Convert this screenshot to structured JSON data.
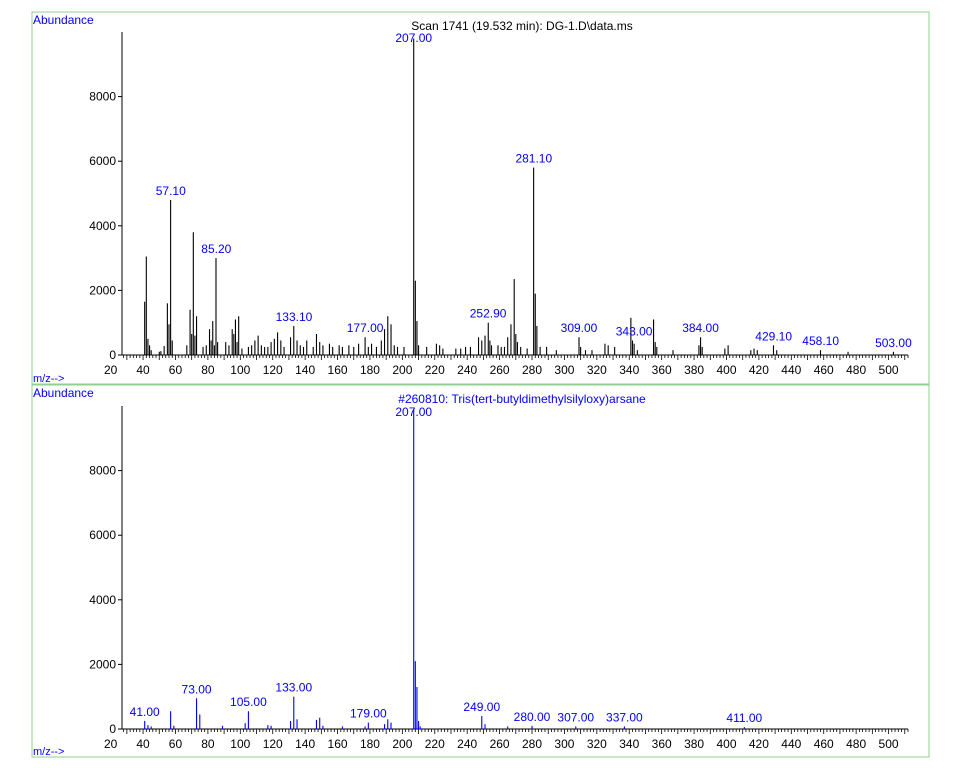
{
  "colors": {
    "panel_border": "#8fd08f",
    "sample_peaks": "#000000",
    "library_peaks": "#0000ff",
    "peak_labels": "#0000ff",
    "axis": "#000000"
  },
  "panels": [
    {
      "id": "sample",
      "ylabel": "Abundance",
      "xlabel": "m/z-->",
      "title": "Scan 1741 (19.532 min): DG-1.D\\data.ms"
    },
    {
      "id": "library",
      "ylabel": "Abundance",
      "xlabel": "m/z-->",
      "title": "#260810: Tris(tert-butyldimethylsilyloxy)arsane"
    }
  ],
  "chart_data": [
    {
      "type": "bar",
      "title": "Scan 1741 (19.532 min): DG-1.D\\data.ms",
      "xlabel": "m/z-->",
      "ylabel": "Abundance",
      "xlim": [
        27,
        512
      ],
      "ylim": [
        0,
        10000
      ],
      "x_ticks": [
        20,
        40,
        60,
        80,
        100,
        120,
        140,
        160,
        180,
        200,
        220,
        240,
        260,
        280,
        300,
        320,
        340,
        360,
        380,
        400,
        420,
        440,
        460,
        480,
        500
      ],
      "y_ticks": [
        0,
        2000,
        4000,
        6000,
        8000
      ],
      "peaks": [
        [
          41,
          1650
        ],
        [
          42,
          3050
        ],
        [
          43,
          500
        ],
        [
          44,
          300
        ],
        [
          45,
          150
        ],
        [
          50,
          100
        ],
        [
          51,
          120
        ],
        [
          53,
          280
        ],
        [
          55,
          1600
        ],
        [
          56,
          950
        ],
        [
          57,
          4800
        ],
        [
          58,
          450
        ],
        [
          67,
          300
        ],
        [
          69,
          1400
        ],
        [
          70,
          650
        ],
        [
          71,
          3800
        ],
        [
          72,
          600
        ],
        [
          73,
          1200
        ],
        [
          77,
          250
        ],
        [
          79,
          300
        ],
        [
          81,
          800
        ],
        [
          82,
          450
        ],
        [
          83,
          1050
        ],
        [
          84,
          300
        ],
        [
          85,
          3000
        ],
        [
          86,
          400
        ],
        [
          91,
          400
        ],
        [
          93,
          300
        ],
        [
          95,
          800
        ],
        [
          96,
          650
        ],
        [
          97,
          1100
        ],
        [
          98,
          400
        ],
        [
          99,
          1200
        ],
        [
          101,
          200
        ],
        [
          105,
          250
        ],
        [
          107,
          300
        ],
        [
          109,
          450
        ],
        [
          111,
          600
        ],
        [
          113,
          300
        ],
        [
          115,
          250
        ],
        [
          117,
          250
        ],
        [
          119,
          400
        ],
        [
          121,
          500
        ],
        [
          123,
          700
        ],
        [
          125,
          450
        ],
        [
          127,
          250
        ],
        [
          131,
          550
        ],
        [
          133,
          900
        ],
        [
          135,
          450
        ],
        [
          137,
          300
        ],
        [
          139,
          250
        ],
        [
          141,
          450
        ],
        [
          145,
          250
        ],
        [
          147,
          650
        ],
        [
          149,
          400
        ],
        [
          151,
          300
        ],
        [
          155,
          350
        ],
        [
          157,
          250
        ],
        [
          161,
          300
        ],
        [
          163,
          250
        ],
        [
          167,
          300
        ],
        [
          170,
          250
        ],
        [
          173,
          350
        ],
        [
          177,
          550
        ],
        [
          179,
          250
        ],
        [
          181,
          350
        ],
        [
          184,
          250
        ],
        [
          187,
          450
        ],
        [
          189,
          800
        ],
        [
          191,
          1200
        ],
        [
          193,
          950
        ],
        [
          195,
          300
        ],
        [
          197,
          250
        ],
        [
          201,
          250
        ],
        [
          207,
          9800
        ],
        [
          208,
          2300
        ],
        [
          209,
          1050
        ],
        [
          210,
          300
        ],
        [
          215,
          250
        ],
        [
          221,
          350
        ],
        [
          223,
          300
        ],
        [
          225,
          200
        ],
        [
          233,
          200
        ],
        [
          236,
          200
        ],
        [
          239,
          250
        ],
        [
          242,
          250
        ],
        [
          247,
          550
        ],
        [
          249,
          450
        ],
        [
          251,
          600
        ],
        [
          253,
          1000
        ],
        [
          254,
          450
        ],
        [
          255,
          300
        ],
        [
          259,
          300
        ],
        [
          261,
          250
        ],
        [
          263,
          250
        ],
        [
          265,
          550
        ],
        [
          267,
          950
        ],
        [
          269,
          2350
        ],
        [
          270,
          650
        ],
        [
          271,
          400
        ],
        [
          273,
          250
        ],
        [
          277,
          200
        ],
        [
          281,
          5800
        ],
        [
          282,
          1900
        ],
        [
          283,
          900
        ],
        [
          285,
          250
        ],
        [
          289,
          250
        ],
        [
          295,
          150
        ],
        [
          309,
          550
        ],
        [
          310,
          250
        ],
        [
          313,
          150
        ],
        [
          317,
          150
        ],
        [
          325,
          350
        ],
        [
          327,
          300
        ],
        [
          331,
          250
        ],
        [
          341,
          1150
        ],
        [
          342,
          450
        ],
        [
          343,
          350
        ],
        [
          345,
          150
        ],
        [
          355,
          1100
        ],
        [
          356,
          400
        ],
        [
          357,
          250
        ],
        [
          367,
          150
        ],
        [
          383,
          300
        ],
        [
          384,
          550
        ],
        [
          385,
          250
        ],
        [
          399,
          200
        ],
        [
          401,
          300
        ],
        [
          415,
          150
        ],
        [
          417,
          200
        ],
        [
          419,
          150
        ],
        [
          429,
          300
        ],
        [
          431,
          150
        ],
        [
          458,
          150
        ],
        [
          475,
          100
        ],
        [
          503,
          100
        ]
      ],
      "labels": [
        {
          "mz": 57.1,
          "text": "57.10"
        },
        {
          "mz": 85.2,
          "text": "85.20"
        },
        {
          "mz": 133.1,
          "text": "133.10"
        },
        {
          "mz": 177.0,
          "text": "177.00"
        },
        {
          "mz": 207.0,
          "text": "207.00"
        },
        {
          "mz": 252.9,
          "text": "252.90"
        },
        {
          "mz": 281.1,
          "text": "281.10"
        },
        {
          "mz": 309.0,
          "text": "309.00"
        },
        {
          "mz": 343.0,
          "text": "343.00"
        },
        {
          "mz": 384.0,
          "text": "384.00"
        },
        {
          "mz": 429.1,
          "text": "429.10"
        },
        {
          "mz": 458.1,
          "text": "458.10"
        },
        {
          "mz": 503.0,
          "text": "503.00"
        }
      ]
    },
    {
      "type": "bar",
      "title": "#260810: Tris(tert-butyldimethylsilyloxy)arsane",
      "xlabel": "m/z-->",
      "ylabel": "Abundance",
      "xlim": [
        27,
        512
      ],
      "ylim": [
        0,
        10000
      ],
      "x_ticks": [
        20,
        40,
        60,
        80,
        100,
        120,
        140,
        160,
        180,
        200,
        220,
        240,
        260,
        280,
        300,
        320,
        340,
        360,
        380,
        400,
        420,
        440,
        460,
        480,
        500
      ],
      "y_ticks": [
        0,
        2000,
        4000,
        6000,
        8000
      ],
      "peaks": [
        [
          41,
          250
        ],
        [
          43,
          120
        ],
        [
          45,
          80
        ],
        [
          57,
          550
        ],
        [
          59,
          100
        ],
        [
          73,
          950
        ],
        [
          75,
          450
        ],
        [
          89,
          100
        ],
        [
          103,
          180
        ],
        [
          105,
          550
        ],
        [
          117,
          120
        ],
        [
          119,
          100
        ],
        [
          131,
          250
        ],
        [
          133,
          1000
        ],
        [
          135,
          300
        ],
        [
          147,
          280
        ],
        [
          149,
          350
        ],
        [
          151,
          100
        ],
        [
          163,
          80
        ],
        [
          177,
          80
        ],
        [
          179,
          200
        ],
        [
          189,
          150
        ],
        [
          191,
          300
        ],
        [
          193,
          200
        ],
        [
          207,
          9900
        ],
        [
          208,
          2100
        ],
        [
          209,
          1300
        ],
        [
          210,
          250
        ],
        [
          211,
          80
        ],
        [
          249,
          400
        ],
        [
          251,
          150
        ],
        [
          265,
          80
        ],
        [
          280,
          100
        ],
        [
          307,
          80
        ],
        [
          337,
          80
        ],
        [
          411,
          60
        ]
      ],
      "labels": [
        {
          "mz": 41.0,
          "text": "41.00"
        },
        {
          "mz": 73.0,
          "text": "73.00"
        },
        {
          "mz": 105.0,
          "text": "105.00"
        },
        {
          "mz": 133.0,
          "text": "133.00"
        },
        {
          "mz": 179.0,
          "text": "179.00"
        },
        {
          "mz": 207.0,
          "text": "207.00"
        },
        {
          "mz": 249.0,
          "text": "249.00"
        },
        {
          "mz": 280.0,
          "text": "280.00"
        },
        {
          "mz": 307.0,
          "text": "307.00"
        },
        {
          "mz": 337.0,
          "text": "337.00"
        },
        {
          "mz": 411.0,
          "text": "411.00"
        }
      ]
    }
  ]
}
